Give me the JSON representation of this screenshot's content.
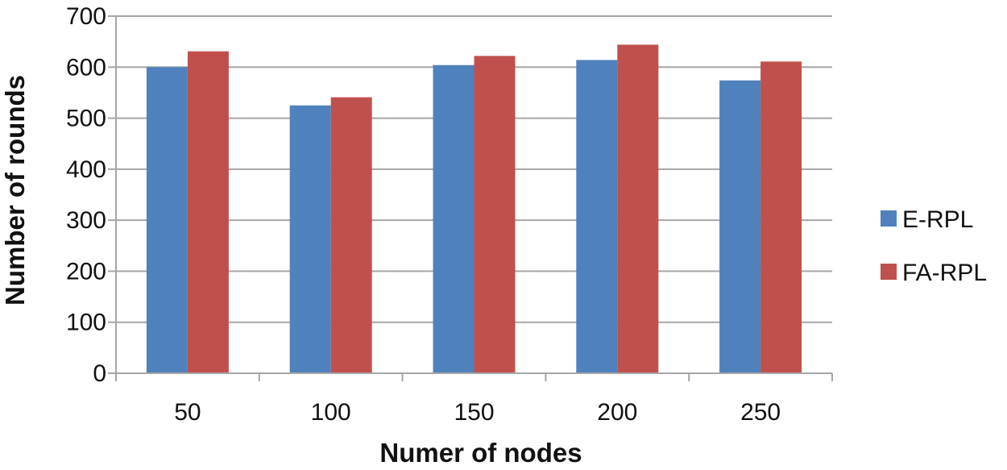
{
  "chart_data": {
    "type": "bar",
    "categories": [
      "50",
      "100",
      "150",
      "200",
      "250"
    ],
    "series": [
      {
        "name": "E-RPL",
        "values": [
          600,
          525,
          604,
          614,
          574
        ],
        "color": "#4f81bd"
      },
      {
        "name": "FA-RPL",
        "values": [
          631,
          541,
          622,
          644,
          611
        ],
        "color": "#c0504d"
      }
    ],
    "title": "",
    "xlabel": "Numer of nodes",
    "ylabel": "Number of rounds",
    "ylim": [
      0,
      700
    ],
    "yticks": [
      0,
      100,
      200,
      300,
      400,
      500,
      600,
      700
    ],
    "grid": true,
    "legend_position": "right"
  }
}
